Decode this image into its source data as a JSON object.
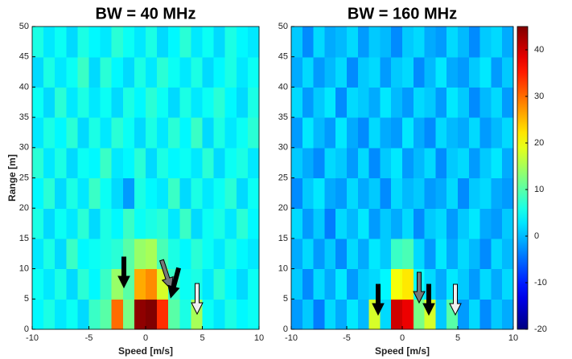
{
  "chart_data": [
    {
      "type": "heatmap",
      "title": "BW = 40 MHz",
      "x_label": "Speed [m/s]",
      "y_label": "Range [m]",
      "x": [
        -9.5,
        -8.5,
        -7.5,
        -6.5,
        -5.5,
        -4.5,
        -3.5,
        -2.5,
        -1.5,
        -0.5,
        0.5,
        1.5,
        2.5,
        3.5,
        4.5,
        5.5,
        6.5,
        7.5,
        8.5,
        9.5
      ],
      "y": [
        2.5,
        7.5,
        12.5,
        17.5,
        22.5,
        27.5,
        32.5,
        37.5,
        42.5,
        47.5
      ],
      "z": [
        [
          4,
          6,
          3,
          5,
          2,
          8,
          10,
          30,
          12,
          44,
          45,
          34,
          10,
          6,
          15,
          5,
          3,
          6,
          4,
          5
        ],
        [
          5,
          3,
          6,
          2,
          7,
          4,
          8,
          14,
          10,
          26,
          28,
          18,
          8,
          5,
          6,
          3,
          7,
          4,
          2,
          5
        ],
        [
          3,
          6,
          2,
          8,
          4,
          5,
          6,
          7,
          10,
          14,
          15,
          9,
          6,
          4,
          7,
          5,
          3,
          6,
          4,
          3
        ],
        [
          6,
          2,
          5,
          3,
          7,
          2,
          6,
          4,
          8,
          5,
          6,
          7,
          3,
          8,
          2,
          5,
          6,
          3,
          7,
          4
        ],
        [
          4,
          7,
          2,
          6,
          3,
          8,
          5,
          2,
          -2,
          6,
          4,
          3,
          8,
          2,
          6,
          3,
          5,
          7,
          2,
          5
        ],
        [
          7,
          3,
          6,
          2,
          5,
          4,
          8,
          3,
          4,
          7,
          2,
          6,
          4,
          5,
          3,
          7,
          2,
          5,
          6,
          3
        ],
        [
          3,
          6,
          4,
          7,
          2,
          6,
          3,
          7,
          5,
          2,
          6,
          3,
          7,
          4,
          8,
          2,
          6,
          3,
          5,
          7
        ],
        [
          5,
          2,
          7,
          3,
          6,
          3,
          5,
          2,
          6,
          4,
          7,
          5,
          2,
          6,
          3,
          5,
          7,
          4,
          2,
          6
        ],
        [
          2,
          6,
          3,
          5,
          8,
          2,
          7,
          4,
          2,
          6,
          3,
          7,
          5,
          3,
          6,
          2,
          4,
          6,
          3,
          5
        ],
        [
          6,
          3,
          5,
          2,
          6,
          4,
          3,
          7,
          5,
          3,
          6,
          2,
          4,
          7,
          3,
          5,
          2,
          6,
          4,
          3
        ]
      ],
      "xlim": [
        -10,
        10
      ],
      "xticks": [
        -10,
        -5,
        0,
        5,
        10
      ],
      "ylim": [
        0,
        50
      ],
      "yticks": [
        0,
        5,
        10,
        15,
        20,
        25,
        30,
        35,
        40,
        45,
        50
      ],
      "zlim": [
        -20,
        45
      ],
      "colormap": "jet"
    },
    {
      "type": "heatmap",
      "title": "BW = 160 MHz",
      "x_label": "Speed [m/s]",
      "x": [
        -9.5,
        -8.5,
        -7.5,
        -6.5,
        -5.5,
        -4.5,
        -3.5,
        -2.5,
        -1.5,
        -0.5,
        0.5,
        1.5,
        2.5,
        3.5,
        4.5,
        5.5,
        6.5,
        7.5,
        8.5,
        9.5
      ],
      "y": [
        2.5,
        7.5,
        12.5,
        17.5,
        22.5,
        27.5,
        32.5,
        37.5,
        42.5,
        47.5
      ],
      "z": [
        [
          -2,
          1,
          -4,
          2,
          -1,
          3,
          0,
          18,
          2,
          40,
          38,
          12,
          18,
          1,
          10,
          -2,
          2,
          -3,
          1,
          -1
        ],
        [
          1,
          -3,
          2,
          -1,
          3,
          -2,
          1,
          2,
          4,
          20,
          22,
          5,
          2,
          -1,
          3,
          1,
          -2,
          2,
          -1,
          2
        ],
        [
          -1,
          2,
          -2,
          1,
          -3,
          2,
          -1,
          3,
          1,
          8,
          9,
          2,
          -2,
          3,
          -1,
          2,
          0,
          -3,
          2,
          0
        ],
        [
          2,
          -2,
          1,
          -4,
          2,
          0,
          3,
          -2,
          1,
          -1,
          2,
          -3,
          1,
          2,
          -2,
          1,
          3,
          -1,
          -2,
          1
        ],
        [
          -3,
          1,
          3,
          -1,
          -2,
          2,
          -1,
          1,
          -3,
          2,
          0,
          1,
          -2,
          -1,
          2,
          -3,
          1,
          2,
          -1,
          -2
        ],
        [
          1,
          -1,
          -3,
          2,
          1,
          -2,
          2,
          -3,
          1,
          3,
          -2,
          0,
          2,
          -3,
          1,
          2,
          -2,
          1,
          3,
          -1
        ],
        [
          -2,
          3,
          0,
          -2,
          3,
          -1,
          -3,
          2,
          -1,
          -2,
          3,
          -1,
          -3,
          2,
          0,
          -1,
          2,
          -2,
          0,
          2
        ],
        [
          2,
          -2,
          1,
          3,
          -3,
          2,
          1,
          -1,
          3,
          0,
          -2,
          2,
          1,
          -2,
          3,
          1,
          -3,
          0,
          2,
          -2
        ],
        [
          -1,
          2,
          -2,
          0,
          2,
          -3,
          1,
          2,
          -2,
          1,
          2,
          -3,
          0,
          3,
          -1,
          -2,
          1,
          3,
          -2,
          1
        ],
        [
          1,
          -3,
          2,
          -1,
          0,
          2,
          -2,
          1,
          0,
          -3,
          1,
          2,
          -1,
          -2,
          2,
          0,
          -3,
          1,
          2,
          -1
        ]
      ],
      "xlim": [
        -10,
        10
      ],
      "xticks": [
        -10,
        -5,
        0,
        5,
        10
      ],
      "ylim": [
        0,
        50
      ],
      "yticks": [
        0,
        5,
        10,
        15,
        20,
        25,
        30,
        35,
        40,
        45,
        50
      ],
      "zlim": [
        -20,
        45
      ],
      "colormap": "jet",
      "colorbar_ticks": [
        -20,
        -10,
        0,
        10,
        20,
        30,
        40
      ]
    }
  ]
}
